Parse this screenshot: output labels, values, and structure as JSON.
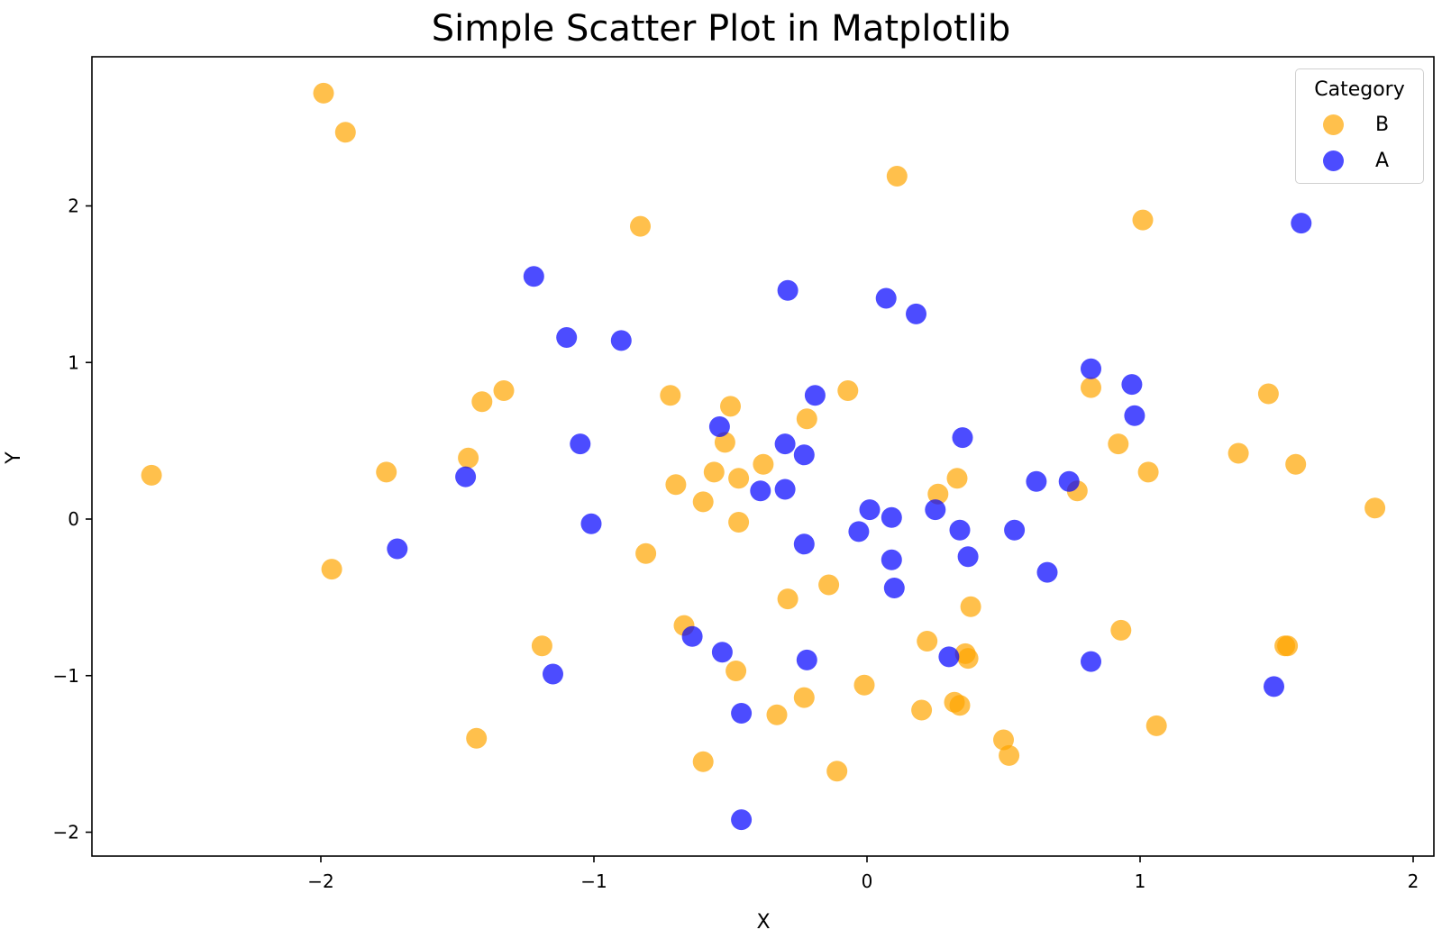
{
  "chart_data": {
    "type": "scatter",
    "title": "Simple Scatter Plot in Matplotlib",
    "xlabel": "X",
    "ylabel": "Y",
    "xlim": [
      -2.85,
      2.08
    ],
    "ylim": [
      -2.18,
      2.98
    ],
    "xticks": [
      -2,
      -1,
      0,
      1,
      2
    ],
    "yticks": [
      -2,
      -1,
      0,
      1,
      2
    ],
    "xtick_labels": [
      "−2",
      "−1",
      "0",
      "1",
      "2"
    ],
    "ytick_labels": [
      "−2",
      "−1",
      "0",
      "1",
      "2"
    ],
    "grid": false,
    "legend": {
      "title": "Category",
      "position": "upper right",
      "entries": [
        "B",
        "A"
      ]
    },
    "series": [
      {
        "name": "B",
        "color": "#ffa500",
        "alpha": 0.7,
        "points": [
          [
            -1.99,
            2.72
          ],
          [
            -1.91,
            2.47
          ],
          [
            0.11,
            2.19
          ],
          [
            -0.83,
            1.87
          ],
          [
            1.01,
            1.91
          ],
          [
            -2.62,
            0.28
          ],
          [
            -1.41,
            0.75
          ],
          [
            -1.33,
            0.82
          ],
          [
            -1.46,
            0.39
          ],
          [
            -1.76,
            0.3
          ],
          [
            -1.96,
            -0.32
          ],
          [
            -0.72,
            0.79
          ],
          [
            -0.5,
            0.72
          ],
          [
            -0.52,
            0.49
          ],
          [
            -0.7,
            0.22
          ],
          [
            -0.56,
            0.3
          ],
          [
            -0.6,
            0.11
          ],
          [
            -0.47,
            0.26
          ],
          [
            -0.47,
            -0.02
          ],
          [
            -0.22,
            0.64
          ],
          [
            -0.07,
            0.82
          ],
          [
            -0.38,
            0.35
          ],
          [
            -0.81,
            -0.22
          ],
          [
            -0.29,
            -0.51
          ],
          [
            -0.14,
            -0.42
          ],
          [
            -0.67,
            -0.68
          ],
          [
            -1.19,
            -0.81
          ],
          [
            -0.48,
            -0.97
          ],
          [
            -0.33,
            -1.25
          ],
          [
            -0.23,
            -1.14
          ],
          [
            -1.43,
            -1.4
          ],
          [
            -0.6,
            -1.55
          ],
          [
            -0.11,
            -1.61
          ],
          [
            -0.01,
            -1.06
          ],
          [
            0.22,
            -0.78
          ],
          [
            0.2,
            -1.22
          ],
          [
            0.32,
            -1.17
          ],
          [
            0.34,
            -1.19
          ],
          [
            0.38,
            -0.56
          ],
          [
            0.36,
            -0.86
          ],
          [
            0.37,
            -0.89
          ],
          [
            0.5,
            -1.41
          ],
          [
            0.52,
            -1.51
          ],
          [
            0.26,
            0.16
          ],
          [
            0.33,
            0.26
          ],
          [
            0.82,
            0.84
          ],
          [
            0.77,
            0.18
          ],
          [
            0.92,
            0.48
          ],
          [
            1.03,
            0.3
          ],
          [
            0.93,
            -0.71
          ],
          [
            1.06,
            -1.32
          ],
          [
            1.36,
            0.42
          ],
          [
            1.47,
            0.8
          ],
          [
            1.57,
            0.35
          ],
          [
            1.53,
            -0.81
          ],
          [
            1.54,
            -0.81
          ],
          [
            1.86,
            0.07
          ]
        ]
      },
      {
        "name": "A",
        "color": "#0000ff",
        "alpha": 0.7,
        "points": [
          [
            1.59,
            1.89
          ],
          [
            -1.22,
            1.55
          ],
          [
            -1.1,
            1.16
          ],
          [
            -0.9,
            1.14
          ],
          [
            -0.29,
            1.46
          ],
          [
            0.07,
            1.41
          ],
          [
            0.18,
            1.31
          ],
          [
            -1.05,
            0.48
          ],
          [
            -1.47,
            0.27
          ],
          [
            -1.72,
            -0.19
          ],
          [
            -1.01,
            -0.03
          ],
          [
            -0.54,
            0.59
          ],
          [
            -0.19,
            0.79
          ],
          [
            -0.3,
            0.48
          ],
          [
            -0.23,
            0.41
          ],
          [
            -0.39,
            0.18
          ],
          [
            -0.3,
            0.19
          ],
          [
            -0.23,
            -0.16
          ],
          [
            0.01,
            0.06
          ],
          [
            -0.03,
            -0.08
          ],
          [
            0.09,
            0.01
          ],
          [
            0.09,
            -0.26
          ],
          [
            0.1,
            -0.44
          ],
          [
            0.25,
            0.06
          ],
          [
            0.35,
            0.52
          ],
          [
            0.34,
            -0.07
          ],
          [
            0.37,
            -0.24
          ],
          [
            0.54,
            -0.07
          ],
          [
            0.62,
            0.24
          ],
          [
            0.74,
            0.24
          ],
          [
            0.66,
            -0.34
          ],
          [
            0.82,
            0.96
          ],
          [
            0.97,
            0.86
          ],
          [
            0.98,
            0.66
          ],
          [
            0.82,
            -0.91
          ],
          [
            1.49,
            -1.07
          ],
          [
            -0.64,
            -0.75
          ],
          [
            -0.53,
            -0.85
          ],
          [
            -0.22,
            -0.9
          ],
          [
            0.3,
            -0.88
          ],
          [
            -1.15,
            -0.99
          ],
          [
            -0.46,
            -1.24
          ],
          [
            -0.46,
            -1.92
          ]
        ]
      }
    ]
  }
}
